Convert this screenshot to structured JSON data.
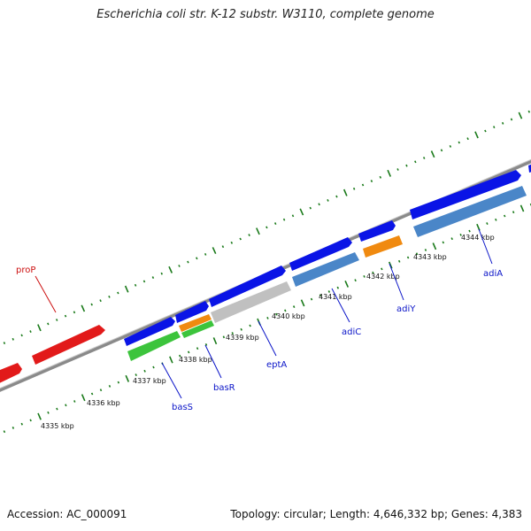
{
  "title": "Escherichia coli str. K-12 substr. W3110, complete genome",
  "footer": {
    "accession": "Accession: AC_000091",
    "summary": "Topology: circular; Length: 4,646,332 bp; Genes: 4,383"
  },
  "colors": {
    "backbone": "#888888",
    "ticks": "#1a7a1a",
    "forward_gene": "#0a14e6",
    "rrna_like": "#e21a1a",
    "green_feature": "#3cc43c",
    "orange_feature": "#f08a10",
    "grey_feature": "#c0c0c0",
    "steel_feature": "#4a86c8",
    "label_blue": "#0a14c8",
    "label_red": "#cc1010"
  },
  "scale_labels": [
    "4335 kbp",
    "4336 kbp",
    "4337 kbp",
    "4338 kbp",
    "4339 kbp",
    "4340 kbp",
    "4341 kbp",
    "4342 kbp",
    "4343 kbp",
    "4344 kbp"
  ],
  "gene_labels": [
    {
      "name": "proP",
      "color": "label_red"
    },
    {
      "name": "basS",
      "color": "label_blue"
    },
    {
      "name": "basR",
      "color": "label_blue"
    },
    {
      "name": "eptA",
      "color": "label_blue"
    },
    {
      "name": "adiC",
      "color": "label_blue"
    },
    {
      "name": "adiY",
      "color": "label_blue"
    },
    {
      "name": "adiA",
      "color": "label_blue"
    }
  ]
}
